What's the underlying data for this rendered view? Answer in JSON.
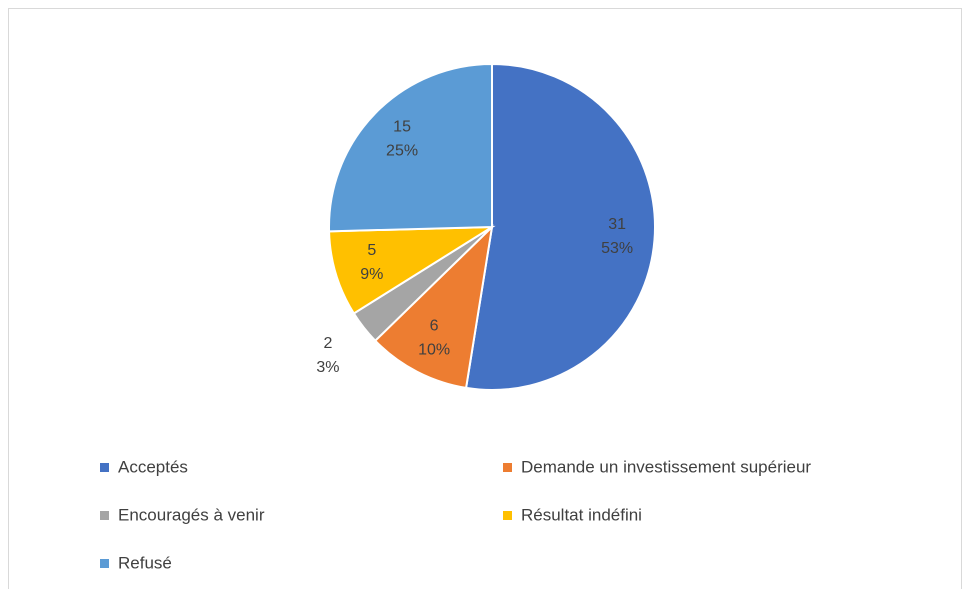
{
  "chart_data": {
    "type": "pie",
    "categories": [
      "Acceptés",
      "Demande un investissement supérieur",
      "Encouragés à venir",
      "Résultat indéfini",
      "Refusé"
    ],
    "values": [
      31,
      6,
      2,
      5,
      15
    ],
    "percents": [
      53,
      10,
      3,
      9,
      25
    ],
    "colors": [
      "#4472c4",
      "#ed7d31",
      "#a5a5a5",
      "#ffc000",
      "#5b9bd5"
    ],
    "legend": "bottom"
  }
}
